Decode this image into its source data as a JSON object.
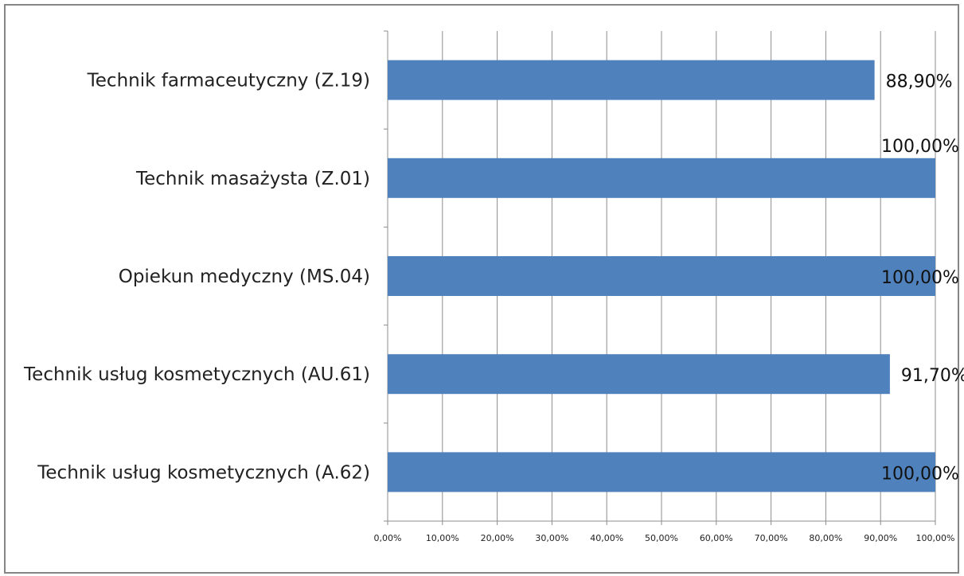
{
  "chart_data": {
    "type": "bar",
    "orientation": "horizontal",
    "title": "",
    "categories": [
      "Technik farmaceutyczny (Z.19)",
      "Technik masażysta (Z.01)",
      "Opiekun medyczny (MS.04)",
      "Technik usług kosmetycznych (AU.61)",
      "Technik usług kosmetycznych (A.62)"
    ],
    "values": [
      88.9,
      100,
      100,
      91.7,
      100
    ],
    "data_labels": [
      "88,90%",
      "100,00%",
      "100,00%",
      "91,70%",
      "100,00%"
    ],
    "xlim": [
      0,
      100
    ],
    "x_ticks": [
      "0,00%",
      "10,00%",
      "20,00%",
      "30,00%",
      "40,00%",
      "50,00%",
      "60,00%",
      "70,00%",
      "80,00%",
      "90,00%",
      "100,00%"
    ],
    "xlabel": "",
    "ylabel": "",
    "grid": true,
    "legend": "none",
    "bar_color": "#4f81bd"
  }
}
